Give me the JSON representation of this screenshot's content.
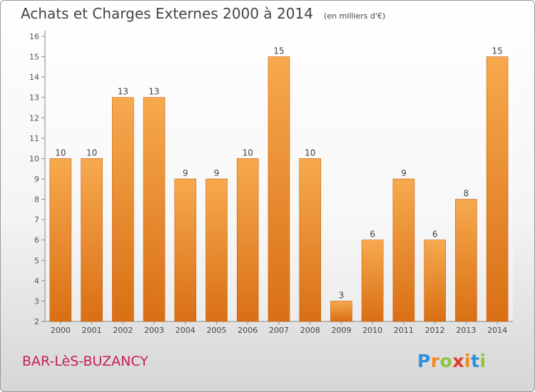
{
  "title": "Achats et Charges Externes 2000 à 2014",
  "unit_note": "(en milliers d'€)",
  "location": "BAR-LèS-BUZANCY",
  "logo": {
    "letters": [
      "P",
      "r",
      "o",
      "x",
      "i",
      "t",
      "i"
    ],
    "colors": [
      "#2f8fd8",
      "#f08a1c",
      "#8cc63f",
      "#e23a2a",
      "#f08a1c",
      "#2f8fd8",
      "#8cc63f"
    ]
  },
  "colors": {
    "bar_top": "#f7a94e",
    "bar_bottom": "#d96f14",
    "location_text": "#c41e5b"
  },
  "chart_data": {
    "type": "bar",
    "categories": [
      "2000",
      "2001",
      "2002",
      "2003",
      "2004",
      "2005",
      "2006",
      "2007",
      "2008",
      "2009",
      "2010",
      "2011",
      "2012",
      "2013",
      "2014"
    ],
    "values": [
      10,
      10,
      13,
      13,
      9,
      9,
      10,
      15,
      10,
      3,
      6,
      9,
      6,
      8,
      15
    ],
    "data_labels": [
      "10",
      "10",
      "13",
      "13",
      "9",
      "9",
      "10",
      "15",
      "10",
      "3",
      "6",
      "9",
      "6",
      "8",
      "15"
    ],
    "ylim": [
      2,
      16
    ],
    "yticks": [
      2,
      3,
      4,
      5,
      6,
      7,
      8,
      9,
      10,
      11,
      12,
      13,
      14,
      15,
      16
    ],
    "ytick_labels": [
      "2",
      "3",
      "4",
      "5",
      "6",
      "7",
      "8",
      "9",
      "10",
      "11",
      "12",
      "13",
      "14",
      "15",
      "16"
    ],
    "xlabel": "",
    "ylabel": "",
    "grid": false
  }
}
